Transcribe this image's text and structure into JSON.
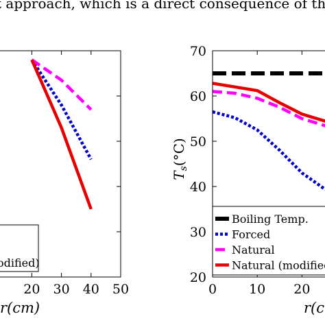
{
  "caption_text": "t approach, which is a direct consequence of the",
  "chart_data": [
    {
      "type": "line",
      "title": "",
      "xlabel": "r(cm)",
      "ylabel": "",
      "xlim": [
        0,
        50
      ],
      "ylim": [
        20,
        70
      ],
      "xticks": [
        20,
        30,
        40,
        50
      ],
      "grid": false,
      "legend_position": "bottom-left",
      "legend_visible_labels": [
        "",
        "odified)"
      ],
      "series": [
        {
          "name": "Forced",
          "color": "#0000c8",
          "style": "dotted",
          "x": [
            20,
            30,
            40
          ],
          "y": [
            68,
            58,
            46
          ]
        },
        {
          "name": "Natural",
          "color": "#ff00ff",
          "style": "dashed",
          "x": [
            20,
            30,
            40
          ],
          "y": [
            68,
            63.5,
            57
          ]
        },
        {
          "name": "Natural (modified)",
          "color": "#e60000",
          "style": "solid",
          "x": [
            20,
            30,
            40
          ],
          "y": [
            68,
            53,
            35
          ]
        }
      ]
    },
    {
      "type": "line",
      "title": "",
      "xlabel": "r(c",
      "ylabel": "T_s(°C)",
      "ylim": [
        20,
        70
      ],
      "xlim": [
        0,
        27
      ],
      "xticks": [
        0,
        10,
        20
      ],
      "yticks": [
        20,
        30,
        40,
        50,
        60,
        70
      ],
      "grid": false,
      "legend_position": "bottom-left",
      "series": [
        {
          "name": "Boiling Temp.",
          "color": "#000000",
          "style": "dash",
          "x": [
            0,
            27
          ],
          "y": [
            65,
            65
          ]
        },
        {
          "name": "Forced",
          "color": "#0000c8",
          "style": "dotted",
          "x": [
            0,
            5,
            10,
            15,
            20,
            25,
            27
          ],
          "y": [
            56.5,
            55.2,
            52.5,
            48,
            43,
            39.5,
            38.5
          ]
        },
        {
          "name": "Natural",
          "color": "#ff00ff",
          "style": "dashed",
          "x": [
            0,
            5,
            10,
            15,
            20,
            25,
            27
          ],
          "y": [
            61,
            60.6,
            59.5,
            57.5,
            55,
            53.5,
            53
          ]
        },
        {
          "name": "Natural (modified)",
          "color": "#e60000",
          "style": "solid",
          "x": [
            0,
            5,
            10,
            15,
            20,
            25,
            27
          ],
          "y": [
            62.8,
            62,
            61.2,
            58.5,
            56,
            54.5,
            54
          ]
        }
      ],
      "legend_labels": [
        "Boiling Temp.",
        "Forced",
        "Natural",
        "Natural (modified"
      ]
    }
  ]
}
